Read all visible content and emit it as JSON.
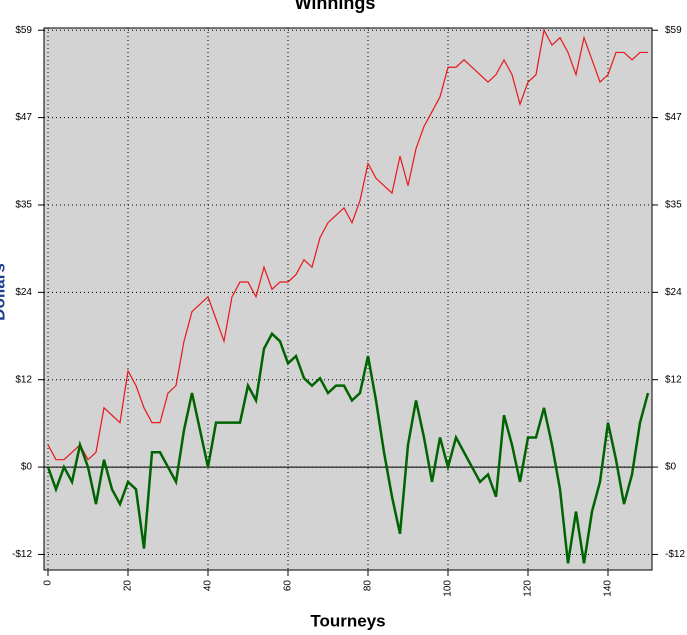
{
  "chart_data": {
    "type": "line",
    "title": "Winnings",
    "x_label": "Tourneys",
    "y_label": "Dollars",
    "x": [
      0,
      2,
      4,
      6,
      8,
      10,
      12,
      14,
      16,
      18,
      20,
      22,
      24,
      26,
      28,
      30,
      32,
      34,
      36,
      38,
      40,
      42,
      44,
      46,
      48,
      50,
      52,
      54,
      56,
      58,
      60,
      62,
      64,
      66,
      68,
      70,
      72,
      74,
      76,
      78,
      80,
      82,
      84,
      86,
      88,
      90,
      92,
      94,
      96,
      98,
      100,
      102,
      104,
      106,
      108,
      110,
      112,
      114,
      116,
      118,
      120,
      122,
      124,
      126,
      128,
      130,
      132,
      134,
      136,
      138,
      140,
      142,
      144,
      146,
      148,
      150
    ],
    "series": [
      {
        "color": "#e8181c",
        "values": [
          3,
          1,
          1,
          2,
          3,
          1,
          2,
          8,
          7,
          6,
          13,
          11,
          8,
          6,
          6,
          10,
          11,
          17,
          21,
          22,
          23,
          20,
          17,
          23,
          25,
          25,
          23,
          27,
          24,
          25,
          25,
          26,
          28,
          27,
          31,
          33,
          34,
          35,
          33,
          36,
          41,
          39,
          38,
          37,
          42,
          38,
          43,
          46,
          48,
          50,
          54,
          54,
          55,
          54,
          53,
          52,
          53,
          55,
          53,
          49,
          52,
          53,
          59,
          57,
          58,
          56,
          53,
          58,
          55,
          52,
          53,
          56,
          56,
          55,
          56,
          56
        ]
      },
      {
        "color": "#006400",
        "values": [
          0,
          -3,
          0,
          -2,
          3,
          0,
          -5,
          1,
          -3,
          -5,
          -2,
          -3,
          -11,
          2,
          2,
          0,
          -2,
          5,
          10,
          5,
          0,
          6,
          6,
          6,
          6,
          11,
          9,
          16,
          18,
          17,
          14,
          15,
          12,
          11,
          12,
          10,
          11,
          11,
          9,
          10,
          15,
          9,
          2,
          -4,
          -9,
          3,
          9,
          4,
          -2,
          4,
          0,
          4,
          2,
          0,
          -2,
          -1,
          -4,
          7,
          3,
          -2,
          4,
          4,
          8,
          3,
          -3,
          -13,
          -6,
          -13,
          -6,
          -2,
          6,
          1,
          -5,
          -1,
          6,
          10
        ]
      }
    ],
    "xlim": [
      -1,
      151
    ],
    "xticks": [
      0,
      20,
      40,
      60,
      80,
      100,
      120,
      140
    ],
    "ylim": [
      -13.9,
      59.3
    ],
    "yticks": [
      {
        "value": -11.8,
        "label": "-$12"
      },
      {
        "value": 0,
        "label": "$0"
      },
      {
        "value": 11.8,
        "label": "$12"
      },
      {
        "value": 23.6,
        "label": "$24"
      },
      {
        "value": 35.4,
        "label": "$35"
      },
      {
        "value": 47.2,
        "label": "$47"
      },
      {
        "value": 59,
        "label": "$59"
      }
    ],
    "grid": true,
    "zero_line": true,
    "plot_background": "#d3d3d3"
  }
}
